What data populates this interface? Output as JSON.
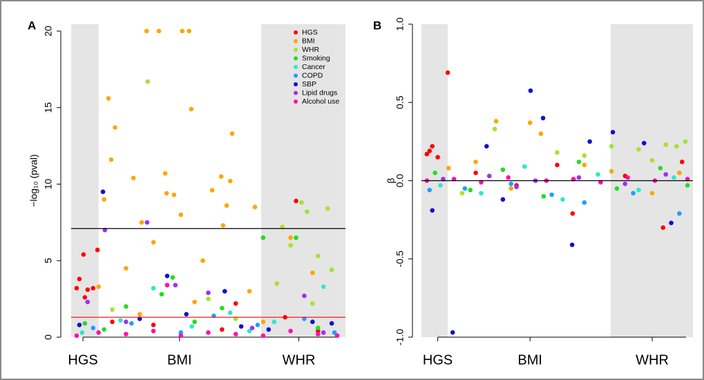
{
  "chart_data": [
    {
      "type": "scatter",
      "panel_label": "A",
      "y_label": "−log₁₀ (pval)",
      "xlim": [
        0,
        100
      ],
      "ylim": [
        0,
        20.45
      ],
      "yticks": [
        0,
        5,
        10,
        15,
        20
      ],
      "xticks": [
        {
          "value": 4.3,
          "label": "HGS"
        },
        {
          "value": 39.5,
          "label": "BMI"
        },
        {
          "value": 83,
          "label": "WHR"
        }
      ],
      "bands": [
        [
          0,
          10
        ],
        [
          69.3,
          100
        ]
      ],
      "band_color": "#e5e5e5",
      "hlines": [
        {
          "value": 7.1,
          "color": "#000000"
        },
        {
          "value": 1.3,
          "color": "#ff0000"
        }
      ],
      "legend": "upper right",
      "series": [
        {
          "name": "HGS",
          "color": "#ff0000",
          "x": [
            2,
            3,
            4.5,
            6,
            8,
            9.6,
            5,
            15,
            30,
            55,
            82,
            78,
            90,
            60
          ],
          "values": [
            3.2,
            3.8,
            5.4,
            3.1,
            3.2,
            5.7,
            2.6,
            1.0,
            0.8,
            0.5,
            8.9,
            1.3,
            0.4,
            2.2
          ]
        },
        {
          "name": "BMI",
          "color": "#ffa500",
          "x": [
            27.5,
            32,
            40.5,
            43,
            13.6,
            16,
            14.6,
            22.7,
            34.3,
            34.8,
            37.5,
            43.8,
            40,
            51.4,
            54.7,
            58,
            56.7,
            58.7,
            67,
            12,
            25.7,
            55.4,
            10,
            20,
            30,
            48,
            45,
            65,
            80,
            88,
            25,
            70
          ],
          "values": [
            20,
            20,
            20,
            20,
            15.6,
            13.7,
            11.6,
            10.4,
            10.7,
            9.4,
            9.3,
            14.9,
            8,
            9.6,
            10.5,
            10.2,
            8.6,
            13.3,
            8.5,
            9,
            7.5,
            7.3,
            3.3,
            4.5,
            6.2,
            5.0,
            2.3,
            3.0,
            6.5,
            4.2,
            1.5,
            1.0
          ]
        },
        {
          "name": "WHR",
          "color": "#a6e22e",
          "x": [
            27.9,
            84,
            86,
            93.5,
            77,
            80,
            90,
            95,
            75,
            35,
            50,
            15,
            60,
            88
          ],
          "values": [
            16.7,
            8.8,
            8.2,
            8.4,
            7.2,
            6.0,
            5.3,
            4.4,
            3.5,
            3.4,
            2.5,
            1.8,
            1.2,
            2.2
          ]
        },
        {
          "name": "Smoking",
          "color": "#22dd22",
          "x": [
            5,
            20,
            33,
            37,
            55,
            70,
            82,
            90,
            12,
            45
          ],
          "values": [
            0.9,
            2.0,
            2.8,
            3.9,
            1.9,
            6.5,
            6.5,
            0.6,
            0.5,
            1.0
          ]
        },
        {
          "name": "Cancer",
          "color": "#2ee8c8",
          "x": [
            4,
            18,
            30,
            44,
            58,
            74,
            92,
            65
          ],
          "values": [
            0.3,
            1.1,
            3.2,
            0.7,
            1.6,
            1.0,
            3.3,
            0.4
          ]
        },
        {
          "name": "COPD",
          "color": "#1ea0ff",
          "x": [
            8,
            22,
            40,
            52,
            68,
            85,
            96
          ],
          "values": [
            0.6,
            0.9,
            0.3,
            1.4,
            0.8,
            1.2,
            0.3
          ]
        },
        {
          "name": "SBP",
          "color": "#1010d0",
          "x": [
            3,
            11.6,
            25,
            35,
            42,
            56,
            62,
            72,
            88,
            95
          ],
          "values": [
            0.8,
            9.5,
            1.2,
            4.0,
            1.5,
            3.0,
            0.7,
            0.5,
            1.0,
            0.9
          ]
        },
        {
          "name": "Lipid drugs",
          "color": "#a030f0",
          "x": [
            12.3,
            27.7,
            6,
            20,
            38,
            50,
            66,
            85,
            92
          ],
          "values": [
            7.0,
            7.5,
            2.3,
            1.0,
            3.4,
            2.9,
            0.6,
            2.7,
            0.3
          ]
        },
        {
          "name": "Alcohol use",
          "color": "#ff10b0",
          "x": [
            2,
            10,
            20,
            30,
            40,
            50,
            60,
            70,
            80,
            90,
            97,
            35
          ],
          "values": [
            0.1,
            0.3,
            0.2,
            0.4,
            0.1,
            0.3,
            0.2,
            0.1,
            0.4,
            0.2,
            0.1,
            3.4
          ]
        }
      ]
    },
    {
      "type": "scatter",
      "panel_label": "B",
      "y_label": "β",
      "xlim": [
        0,
        100
      ],
      "ylim": [
        -1,
        1
      ],
      "yticks": [
        {
          "value": -1,
          "label": "-1.0"
        },
        {
          "value": -0.5,
          "label": "-0.5"
        },
        {
          "value": 0,
          "label": "0.0"
        },
        {
          "value": 0.5,
          "label": "0.5"
        },
        {
          "value": 1,
          "label": "1.0"
        }
      ],
      "xticks": [
        {
          "value": 6,
          "label": "HGS"
        },
        {
          "value": 40,
          "label": "BMI"
        },
        {
          "value": 85,
          "label": "WHR"
        }
      ],
      "bands": [
        [
          0,
          9.7
        ],
        [
          69.7,
          100
        ]
      ],
      "band_color": "#e5e5e5",
      "hlines": [
        {
          "value": 0,
          "color": "#000000"
        }
      ],
      "series": [
        {
          "color": "#ff0000",
          "x": [
            2,
            3,
            4,
            6,
            9.7,
            20,
            35,
            55.7,
            75,
            89,
            96,
            50
          ],
          "values": [
            0.17,
            0.19,
            0.22,
            0.15,
            0.69,
            0.05,
            -0.03,
            -0.21,
            0.03,
            -0.3,
            0.12,
            0.1
          ]
        },
        {
          "color": "#ffa500",
          "x": [
            27.5,
            40,
            44,
            10,
            20,
            33,
            60,
            70,
            85,
            95
          ],
          "values": [
            0.38,
            0.37,
            0.3,
            0.08,
            0.12,
            -0.05,
            0.1,
            0.06,
            -0.08,
            0.05
          ]
        },
        {
          "color": "#a6e22e",
          "x": [
            27,
            70,
            80,
            90,
            97.2,
            94,
            50,
            15,
            60,
            85
          ],
          "values": [
            0.33,
            0.22,
            0.2,
            0.23,
            0.25,
            0.22,
            0.18,
            -0.08,
            0.16,
            0.13
          ]
        },
        {
          "color": "#22dd22",
          "x": [
            5,
            18,
            30,
            45,
            58,
            72,
            88,
            98
          ],
          "values": [
            0.05,
            -0.06,
            0.07,
            -0.1,
            0.12,
            -0.05,
            0.08,
            -0.03
          ]
        },
        {
          "color": "#2ee8c8",
          "x": [
            7,
            22,
            38,
            52,
            65,
            80,
            93
          ],
          "values": [
            -0.03,
            -0.08,
            0.09,
            -0.12,
            0.04,
            -0.06,
            0.02
          ]
        },
        {
          "color": "#1ea0ff",
          "x": [
            3,
            16,
            33,
            48,
            60,
            78,
            95
          ],
          "values": [
            -0.06,
            -0.05,
            -0.02,
            -0.09,
            -0.14,
            -0.08,
            -0.21
          ]
        },
        {
          "color": "#1010d0",
          "x": [
            4,
            11.5,
            40.2,
            44.8,
            55.5,
            70.5,
            30,
            62,
            82,
            92,
            24
          ],
          "values": [
            -0.19,
            -0.97,
            0.575,
            0.4,
            -0.41,
            0.31,
            -0.12,
            0.25,
            0.24,
            -0.27,
            0.22
          ]
        },
        {
          "color": "#a030f0",
          "x": [
            8,
            25,
            42,
            58,
            75,
            90,
            35
          ],
          "values": [
            0.01,
            0.03,
            0.0,
            0.02,
            -0.02,
            0.04,
            -0.04
          ]
        },
        {
          "color": "#ff10b0",
          "x": [
            2,
            12,
            22,
            32,
            46,
            56,
            66,
            76,
            86,
            98
          ],
          "values": [
            0.0,
            0.01,
            -0.01,
            0.02,
            0.0,
            0.01,
            -0.01,
            0.02,
            0.0,
            0.01
          ]
        }
      ]
    }
  ]
}
